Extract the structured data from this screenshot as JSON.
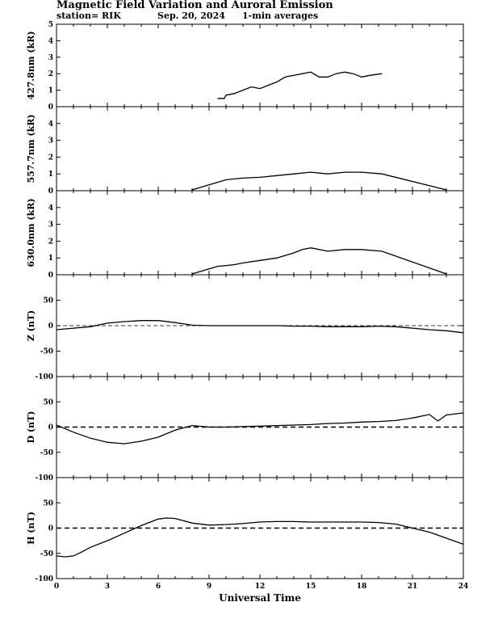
{
  "header": {
    "title": "Magnetic Field Variation and Auroral Emission",
    "station": "station= RIK",
    "date": "Sep. 20, 2024",
    "averaging": "1-min averages"
  },
  "chart_data": [
    {
      "type": "line",
      "ylabel": "427.8nm (kR)",
      "xlim": [
        0,
        24
      ],
      "ylim": [
        0,
        5
      ],
      "yticks": [
        0,
        1,
        2,
        3,
        4,
        5
      ],
      "x": [
        9.5,
        9.9,
        10.0,
        10.5,
        11.0,
        11.5,
        12.0,
        12.5,
        13.0,
        13.5,
        14.0,
        14.5,
        15.0,
        15.5,
        16.0,
        16.5,
        17.0,
        17.5,
        18.0,
        18.5,
        19.2
      ],
      "y": [
        0.5,
        0.5,
        0.7,
        0.8,
        1.0,
        1.2,
        1.1,
        1.3,
        1.5,
        1.8,
        1.9,
        2.0,
        2.1,
        1.8,
        1.8,
        2.0,
        2.1,
        2.0,
        1.8,
        1.9,
        2.0
      ]
    },
    {
      "type": "line",
      "ylabel": "557.7nm (kR)",
      "xlim": [
        0,
        24
      ],
      "ylim": [
        0,
        5
      ],
      "yticks": [
        0,
        1,
        2,
        3,
        4
      ],
      "x": [
        8.0,
        9.5,
        10.0,
        10.5,
        11.0,
        12.0,
        13.0,
        14.0,
        15.0,
        16.0,
        17.0,
        18.0,
        19.2,
        23.0
      ],
      "y": [
        0.05,
        0.5,
        0.65,
        0.7,
        0.75,
        0.8,
        0.9,
        1.0,
        1.1,
        1.0,
        1.1,
        1.1,
        1.0,
        0.05
      ]
    },
    {
      "type": "line",
      "ylabel": "630.0nm (kR)",
      "xlim": [
        0,
        24
      ],
      "ylim": [
        0,
        5
      ],
      "yticks": [
        0,
        1,
        2,
        3,
        4
      ],
      "x": [
        8.0,
        9.5,
        10.0,
        10.5,
        11.0,
        12.0,
        13.0,
        14.0,
        14.5,
        15.0,
        16.0,
        17.0,
        18.0,
        19.2,
        23.0
      ],
      "y": [
        0.05,
        0.5,
        0.55,
        0.6,
        0.7,
        0.85,
        1.0,
        1.3,
        1.5,
        1.6,
        1.4,
        1.5,
        1.5,
        1.4,
        0.05
      ]
    },
    {
      "type": "line",
      "ylabel": "Z (nT)",
      "xlim": [
        0,
        24
      ],
      "ylim": [
        -100,
        100
      ],
      "yticks": [
        -100,
        -50,
        0,
        50
      ],
      "zero_line": "dashed",
      "x": [
        0,
        1,
        2,
        3,
        4,
        5,
        6,
        7,
        8,
        9,
        10,
        11,
        12,
        13,
        14,
        15,
        16,
        17,
        18,
        19,
        20,
        21,
        22,
        23,
        24
      ],
      "y": [
        -8,
        -5,
        -2,
        5,
        8,
        10,
        10,
        6,
        1,
        0,
        0,
        0,
        0,
        0,
        -1,
        -1,
        -2,
        -2,
        -2,
        -1,
        -2,
        -5,
        -8,
        -10,
        -14
      ]
    },
    {
      "type": "line",
      "ylabel": "D (nT)",
      "xlim": [
        0,
        24
      ],
      "ylim": [
        -100,
        100
      ],
      "yticks": [
        -100,
        -50,
        0,
        50
      ],
      "zero_line": "dashed",
      "x": [
        0,
        1,
        2,
        3,
        4,
        5,
        6,
        7,
        8,
        9,
        10,
        11,
        12,
        13,
        14,
        15,
        16,
        17,
        18,
        19,
        20,
        21,
        22,
        22.5,
        23,
        24
      ],
      "y": [
        4,
        -10,
        -22,
        -30,
        -33,
        -28,
        -20,
        -6,
        3,
        0,
        0,
        1,
        2,
        3,
        4,
        5,
        7,
        8,
        10,
        11,
        13,
        18,
        25,
        12,
        24,
        28
      ]
    },
    {
      "type": "line",
      "ylabel": "H (nT)",
      "xlim": [
        0,
        24
      ],
      "ylim": [
        -100,
        100
      ],
      "yticks": [
        -100,
        -50,
        0,
        50
      ],
      "zero_line": "dashed",
      "xticks": [
        0,
        3,
        6,
        9,
        12,
        15,
        18,
        21,
        24
      ],
      "xlabel": "Universal Time",
      "x": [
        0,
        0.5,
        1,
        1.5,
        2,
        3,
        4,
        5,
        6,
        6.5,
        7,
        8,
        9,
        10,
        11,
        12,
        13,
        14,
        15,
        16,
        17,
        18,
        19,
        20,
        21,
        22,
        23,
        24
      ],
      "y": [
        -55,
        -57,
        -55,
        -47,
        -38,
        -25,
        -10,
        5,
        18,
        20,
        19,
        10,
        6,
        7,
        9,
        12,
        13,
        13,
        12,
        12,
        12,
        12,
        11,
        8,
        0,
        -8,
        -20,
        -32
      ]
    }
  ]
}
